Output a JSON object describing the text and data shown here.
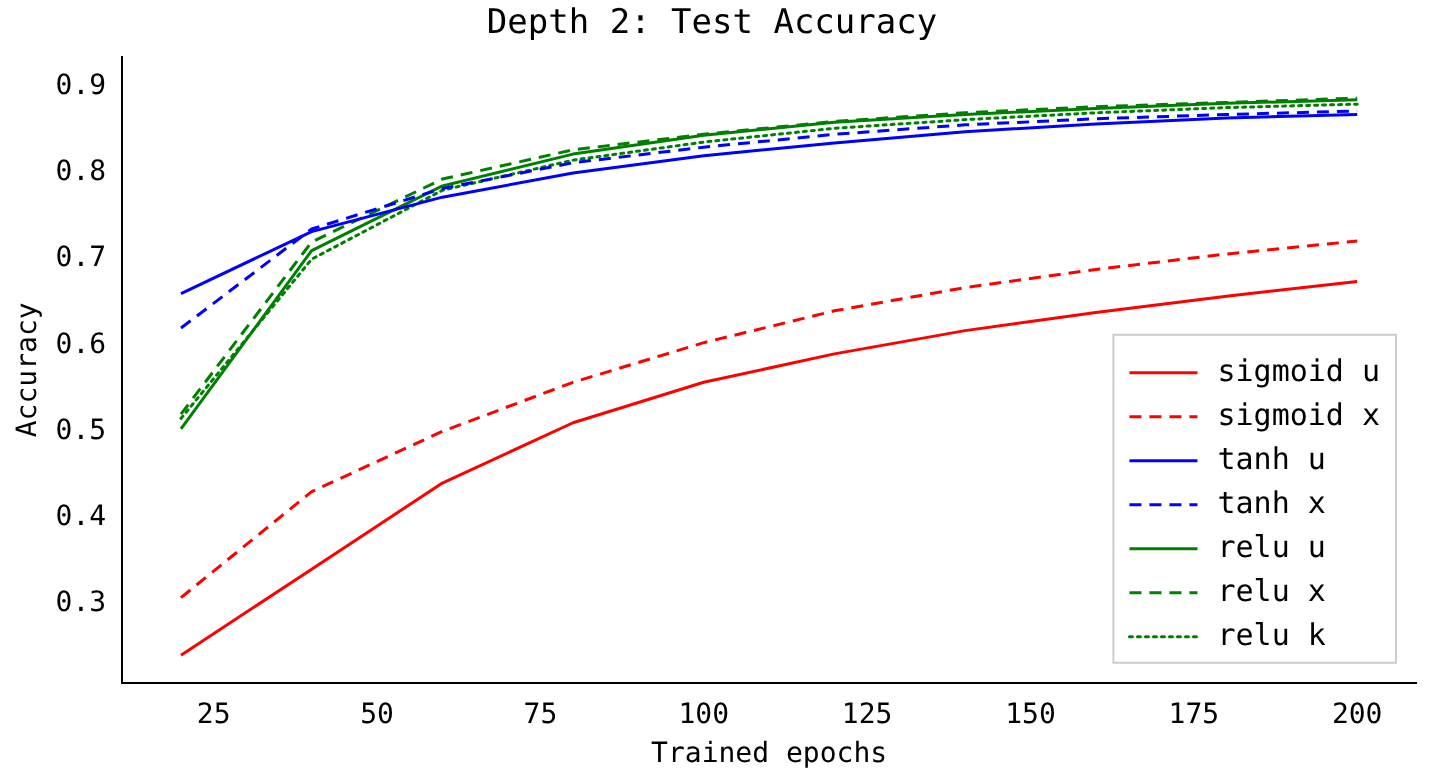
{
  "chart_data": {
    "type": "line",
    "title": "Depth 2: Test Accuracy",
    "xlabel": "Trained epochs",
    "ylabel": "Accuracy",
    "x": [
      20,
      40,
      60,
      80,
      100,
      120,
      140,
      160,
      180,
      200
    ],
    "series": [
      {
        "name": "sigmoid u",
        "color": "#ff0000",
        "line_style": "solid",
        "values": [
          0.24,
          0.34,
          0.44,
          0.51,
          0.557,
          0.59,
          0.617,
          0.638,
          0.657,
          0.674
        ]
      },
      {
        "name": "sigmoid x",
        "color": "#ff0000",
        "line_style": "dashed",
        "values": [
          0.307,
          0.43,
          0.5,
          0.557,
          0.603,
          0.64,
          0.667,
          0.688,
          0.706,
          0.721
        ]
      },
      {
        "name": "tanh u",
        "color": "#0000ff",
        "line_style": "solid",
        "values": [
          0.66,
          0.732,
          0.772,
          0.8,
          0.82,
          0.835,
          0.848,
          0.857,
          0.864,
          0.868
        ]
      },
      {
        "name": "tanh x",
        "color": "#0000ff",
        "line_style": "dashed",
        "values": [
          0.62,
          0.735,
          0.782,
          0.812,
          0.83,
          0.845,
          0.856,
          0.863,
          0.868,
          0.872
        ]
      },
      {
        "name": "relu u",
        "color": "#008000",
        "line_style": "solid",
        "values": [
          0.503,
          0.71,
          0.785,
          0.822,
          0.844,
          0.859,
          0.868,
          0.875,
          0.881,
          0.885
        ]
      },
      {
        "name": "relu x",
        "color": "#008000",
        "line_style": "dashed",
        "values": [
          0.52,
          0.72,
          0.793,
          0.827,
          0.845,
          0.86,
          0.87,
          0.877,
          0.882,
          0.887
        ]
      },
      {
        "name": "relu k",
        "color": "#008000",
        "line_style": "dotted",
        "values": [
          0.515,
          0.7,
          0.78,
          0.815,
          0.836,
          0.852,
          0.862,
          0.87,
          0.876,
          0.88
        ]
      }
    ],
    "xlim": [
      11,
      209
    ],
    "xticks": [
      25,
      50,
      75,
      100,
      125,
      150,
      175,
      200
    ],
    "ylim": [
      0.208,
      0.935
    ],
    "yticks": [
      0.3,
      0.4,
      0.5,
      0.6,
      0.7,
      0.8,
      0.9
    ],
    "grid": false,
    "legend": "bottom right",
    "marker": "none"
  }
}
